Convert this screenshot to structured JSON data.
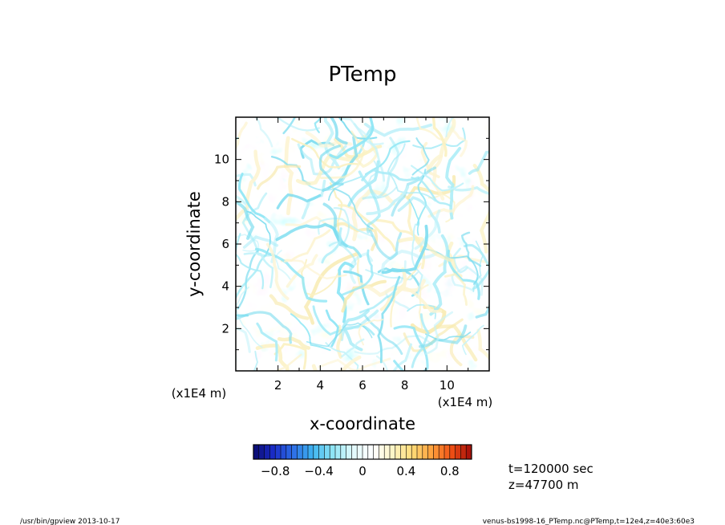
{
  "chart_data": {
    "type": "heatmap",
    "title": "PTemp",
    "xlabel": "x-coordinate",
    "ylabel": "y-coordinate",
    "x_unit": "(x1E4 m)",
    "y_unit": "(x1E4 m)",
    "xlim": [
      0,
      12
    ],
    "ylim": [
      0,
      12
    ],
    "x_ticks": [
      2,
      4,
      6,
      8,
      10
    ],
    "y_ticks": [
      2,
      4,
      6,
      8,
      10
    ],
    "x_tick_labels": [
      "2",
      "4",
      "6",
      "8",
      "10"
    ],
    "y_tick_labels": [
      "2",
      "4",
      "6",
      "8",
      "10"
    ],
    "value_range": [
      -1.0,
      1.0
    ],
    "field_description": "noisy turbulent field with small amplitude, mostly near 0 (light cyan and pale yellow swirls)",
    "colorbar": {
      "min": -1.0,
      "max": 1.0,
      "levels": 40,
      "ticks": [
        -0.8,
        -0.4,
        0,
        0.4,
        0.8
      ],
      "tick_labels": [
        "−0.8",
        "−0.4",
        "0",
        "0.4",
        "0.8"
      ],
      "colors": [
        "#0a0a6e",
        "#1a2cc8",
        "#2d6ee6",
        "#3fb5f0",
        "#8fe6f5",
        "#e0fafc",
        "#ffffff",
        "#fdf6c8",
        "#ffdc78",
        "#ffa03c",
        "#f05014",
        "#a00a0a"
      ]
    }
  },
  "annotations": {
    "time": "t=120000 sec",
    "height": "z=47700  m"
  },
  "footer": {
    "left": "/usr/bin/gpview   2013-10-17",
    "right": "venus-bs1998-16_PTemp.nc@PTemp,t=12e4,z=40e3:60e3"
  }
}
